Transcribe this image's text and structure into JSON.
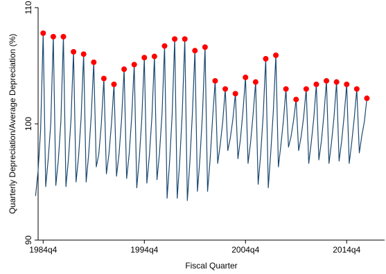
{
  "chart_data": {
    "type": "line",
    "title": "",
    "xlabel": "Fiscal Quarter",
    "ylabel": "Quarterly Depreciation/Average  Depreciation (%)",
    "xlim": [
      1984.25,
      2018.5
    ],
    "ylim": [
      90,
      110
    ],
    "xticks": [
      {
        "value": 1984.75,
        "label": "1984q4"
      },
      {
        "value": 1994.75,
        "label": "1994q4"
      },
      {
        "value": 2004.75,
        "label": "2004q4"
      },
      {
        "value": 2014.75,
        "label": "2014q4"
      }
    ],
    "yticks": [
      {
        "value": 90,
        "label": "90"
      },
      {
        "value": 100,
        "label": "100"
      },
      {
        "value": 110,
        "label": "110"
      }
    ],
    "grid": false,
    "colors": {
      "line": "#1a476f",
      "marker": "#ff0000"
    },
    "q4_values": [
      107.8,
      107.5,
      107.5,
      106.2,
      106.0,
      105.3,
      103.9,
      103.4,
      104.7,
      105.1,
      105.7,
      105.8,
      106.7,
      107.3,
      107.3,
      106.3,
      106.6,
      103.7,
      103.0,
      102.6,
      104.0,
      103.6,
      105.6,
      105.9,
      103.0,
      102.1,
      103.0,
      103.4,
      103.7,
      103.6,
      103.4,
      103.0,
      102.2
    ],
    "low_values": [
      93.8,
      94.6,
      94.7,
      94.6,
      95.0,
      95.0,
      96.3,
      95.7,
      95.5,
      95.3,
      94.5,
      94.9,
      95.2,
      93.6,
      93.6,
      93.4,
      94.2,
      94.2,
      96.6,
      97.7,
      97.0,
      96.6,
      94.8,
      94.5,
      96.3,
      98.0,
      97.7,
      96.6,
      96.9,
      96.6,
      96.8,
      96.6,
      97.5
    ],
    "series": [
      {
        "points": [
          [
            "1984q1",
            93.8
          ],
          [
            "1984q2",
            96.0
          ],
          [
            "1984q3",
            99.5
          ],
          [
            "1984q4",
            107.8
          ],
          [
            "1985q1",
            94.6
          ],
          [
            "1985q2",
            97.0
          ],
          [
            "1985q3",
            100.0
          ],
          [
            "1985q4",
            107.5
          ],
          [
            "1986q1",
            94.7
          ],
          [
            "1986q2",
            96.9
          ],
          [
            "1986q3",
            100.2
          ],
          [
            "1986q4",
            107.5
          ],
          [
            "1987q1",
            94.6
          ],
          [
            "1987q2",
            97.0
          ],
          [
            "1987q3",
            100.4
          ],
          [
            "1987q4",
            106.2
          ],
          [
            "1988q1",
            95.0
          ],
          [
            "1988q2",
            97.2
          ],
          [
            "1988q3",
            100.5
          ],
          [
            "1988q4",
            106.0
          ],
          [
            "1989q1",
            95.0
          ],
          [
            "1989q2",
            97.4
          ],
          [
            "1989q3",
            100.7
          ],
          [
            "1989q4",
            105.3
          ],
          [
            "1990q1",
            96.3
          ],
          [
            "1990q2",
            97.4
          ],
          [
            "1990q3",
            100.0
          ],
          [
            "1990q4",
            103.9
          ],
          [
            "1991q1",
            95.7
          ],
          [
            "1991q2",
            97.4
          ],
          [
            "1991q3",
            100.0
          ],
          [
            "1991q4",
            103.4
          ],
          [
            "1992q1",
            95.5
          ],
          [
            "1992q2",
            97.4
          ],
          [
            "1992q3",
            100.4
          ],
          [
            "1992q4",
            104.7
          ],
          [
            "1993q1",
            95.3
          ],
          [
            "1993q2",
            97.4
          ],
          [
            "1993q3",
            100.6
          ],
          [
            "1993q4",
            105.1
          ],
          [
            "1994q1",
            94.5
          ],
          [
            "1994q2",
            97.0
          ],
          [
            "1994q3",
            100.5
          ],
          [
            "1994q4",
            105.7
          ],
          [
            "1995q1",
            94.9
          ],
          [
            "1995q2",
            97.3
          ],
          [
            "1995q3",
            100.6
          ],
          [
            "1995q4",
            105.8
          ],
          [
            "1996q1",
            95.2
          ],
          [
            "1996q2",
            97.5
          ],
          [
            "1996q3",
            100.9
          ],
          [
            "1996q4",
            106.7
          ],
          [
            "1997q1",
            93.6
          ],
          [
            "1997q2",
            96.8
          ],
          [
            "1997q3",
            100.8
          ],
          [
            "1997q4",
            107.3
          ],
          [
            "1998q1",
            93.6
          ],
          [
            "1998q2",
            96.8
          ],
          [
            "1998q3",
            101.0
          ],
          [
            "1998q4",
            107.3
          ],
          [
            "1999q1",
            93.4
          ],
          [
            "1999q2",
            96.7
          ],
          [
            "1999q3",
            100.9
          ],
          [
            "1999q4",
            106.3
          ],
          [
            "2000q1",
            94.2
          ],
          [
            "2000q2",
            97.1
          ],
          [
            "2000q3",
            100.9
          ],
          [
            "2000q4",
            106.6
          ],
          [
            "2001q1",
            94.2
          ],
          [
            "2001q2",
            96.9
          ],
          [
            "2001q3",
            100.5
          ],
          [
            "2001q4",
            103.7
          ],
          [
            "2002q1",
            96.6
          ],
          [
            "2002q2",
            98.2
          ],
          [
            "2002q3",
            100.2
          ],
          [
            "2002q4",
            103.0
          ],
          [
            "2003q1",
            97.7
          ],
          [
            "2003q2",
            98.8
          ],
          [
            "2003q3",
            100.4
          ],
          [
            "2003q4",
            102.6
          ],
          [
            "2004q1",
            97.0
          ],
          [
            "2004q2",
            98.7
          ],
          [
            "2004q3",
            101.1
          ],
          [
            "2004q4",
            104.0
          ],
          [
            "2005q1",
            96.6
          ],
          [
            "2005q2",
            98.4
          ],
          [
            "2005q3",
            100.8
          ],
          [
            "2005q4",
            103.6
          ],
          [
            "2006q1",
            94.8
          ],
          [
            "2006q2",
            97.4
          ],
          [
            "2006q3",
            100.8
          ],
          [
            "2006q4",
            105.6
          ],
          [
            "2007q1",
            94.5
          ],
          [
            "2007q2",
            97.6
          ],
          [
            "2007q3",
            101.1
          ],
          [
            "2007q4",
            105.9
          ],
          [
            "2008q1",
            96.3
          ],
          [
            "2008q2",
            98.2
          ],
          [
            "2008q3",
            100.3
          ],
          [
            "2008q4",
            103.0
          ],
          [
            "2009q1",
            98.0
          ],
          [
            "2009q2",
            98.9
          ],
          [
            "2009q3",
            100.3
          ],
          [
            "2009q4",
            102.1
          ],
          [
            "2010q1",
            97.7
          ],
          [
            "2010q2",
            98.9
          ],
          [
            "2010q3",
            100.6
          ],
          [
            "2010q4",
            103.0
          ],
          [
            "2011q1",
            96.6
          ],
          [
            "2011q2",
            98.4
          ],
          [
            "2011q3",
            100.5
          ],
          [
            "2011q4",
            103.4
          ],
          [
            "2012q1",
            96.9
          ],
          [
            "2012q2",
            98.5
          ],
          [
            "2012q3",
            100.8
          ],
          [
            "2012q4",
            103.7
          ],
          [
            "2013q1",
            96.6
          ],
          [
            "2013q2",
            98.4
          ],
          [
            "2013q3",
            100.6
          ],
          [
            "2013q4",
            103.6
          ],
          [
            "2014q1",
            96.8
          ],
          [
            "2014q2",
            98.5
          ],
          [
            "2014q3",
            100.7
          ],
          [
            "2014q4",
            103.4
          ],
          [
            "2015q1",
            96.6
          ],
          [
            "2015q2",
            98.4
          ],
          [
            "2015q3",
            100.5
          ],
          [
            "2015q4",
            103.0
          ],
          [
            "2016q1",
            97.5
          ],
          [
            "2016q2",
            99.0
          ],
          [
            "2016q3",
            100.2
          ],
          [
            "2016q4",
            102.2
          ]
        ]
      }
    ]
  }
}
